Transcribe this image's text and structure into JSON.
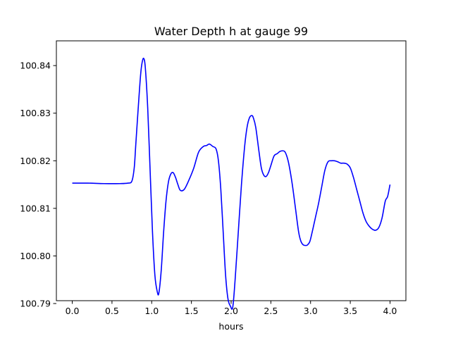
{
  "chart_data": {
    "type": "line",
    "title": "Water Depth h at gauge 99",
    "xlabel": "hours",
    "ylabel": "",
    "xlim": [
      -0.2,
      4.2
    ],
    "ylim": [
      100.7906,
      100.8452
    ],
    "xticks": [
      0.0,
      0.5,
      1.0,
      1.5,
      2.0,
      2.5,
      3.0,
      3.5,
      4.0
    ],
    "xtick_labels": [
      "0.0",
      "0.5",
      "1.0",
      "1.5",
      "2.0",
      "2.5",
      "3.0",
      "3.5",
      "4.0"
    ],
    "yticks": [
      100.79,
      100.8,
      100.81,
      100.82,
      100.83,
      100.84
    ],
    "ytick_labels": [
      "100.79",
      "100.80",
      "100.81",
      "100.82",
      "100.83",
      "100.84"
    ],
    "grid": false,
    "legend": "none",
    "series": [
      {
        "color": "#0000ff",
        "x": [
          0.0,
          0.2,
          0.4,
          0.6,
          0.7,
          0.75,
          0.78,
          0.8,
          0.83,
          0.86,
          0.88,
          0.9,
          0.92,
          0.95,
          0.98,
          1.01,
          1.04,
          1.07,
          1.09,
          1.12,
          1.15,
          1.18,
          1.21,
          1.24,
          1.27,
          1.3,
          1.33,
          1.36,
          1.41,
          1.47,
          1.53,
          1.59,
          1.65,
          1.69,
          1.72,
          1.74,
          1.77,
          1.81,
          1.84,
          1.87,
          1.9,
          1.93,
          1.96,
          1.99,
          2.02,
          2.05,
          2.09,
          2.13,
          2.17,
          2.2,
          2.23,
          2.26,
          2.28,
          2.31,
          2.35,
          2.38,
          2.41,
          2.44,
          2.47,
          2.5,
          2.54,
          2.58,
          2.62,
          2.67,
          2.7,
          2.73,
          2.77,
          2.81,
          2.85,
          2.88,
          2.91,
          2.94,
          2.96,
          2.99,
          3.02,
          3.06,
          3.1,
          3.14,
          3.18,
          3.22,
          3.26,
          3.3,
          3.34,
          3.38,
          3.42,
          3.46,
          3.5,
          3.54,
          3.58,
          3.62,
          3.66,
          3.7,
          3.74,
          3.78,
          3.82,
          3.86,
          3.9,
          3.94,
          3.97,
          4.0
        ],
        "y": [
          100.8153,
          100.8153,
          100.8152,
          100.8152,
          100.8153,
          100.8157,
          100.8185,
          100.8235,
          100.831,
          100.838,
          100.8407,
          100.8415,
          100.8395,
          100.831,
          100.818,
          100.805,
          100.796,
          100.7925,
          100.7922,
          100.797,
          100.805,
          100.8115,
          100.8155,
          100.8172,
          100.8175,
          100.8165,
          100.815,
          100.8138,
          100.814,
          100.816,
          100.8185,
          100.8218,
          100.823,
          100.8232,
          100.8235,
          100.8234,
          100.823,
          100.8225,
          100.82,
          100.814,
          100.805,
          100.796,
          100.791,
          100.7895,
          100.7892,
          100.795,
          100.805,
          100.815,
          100.823,
          100.827,
          100.829,
          100.8295,
          100.829,
          100.827,
          100.822,
          100.8185,
          100.817,
          100.8167,
          100.8175,
          100.819,
          100.821,
          100.8215,
          100.822,
          100.822,
          100.821,
          100.819,
          100.815,
          100.81,
          100.805,
          100.803,
          100.8023,
          100.8022,
          100.8023,
          100.803,
          100.805,
          100.808,
          100.811,
          100.8145,
          100.818,
          100.8198,
          100.82,
          100.82,
          100.8198,
          100.8195,
          100.8195,
          100.8193,
          100.8185,
          100.8165,
          100.814,
          100.8115,
          100.809,
          100.8072,
          100.8062,
          100.8056,
          100.8054,
          100.806,
          100.808,
          100.8115,
          100.8125,
          100.815
        ]
      }
    ]
  }
}
